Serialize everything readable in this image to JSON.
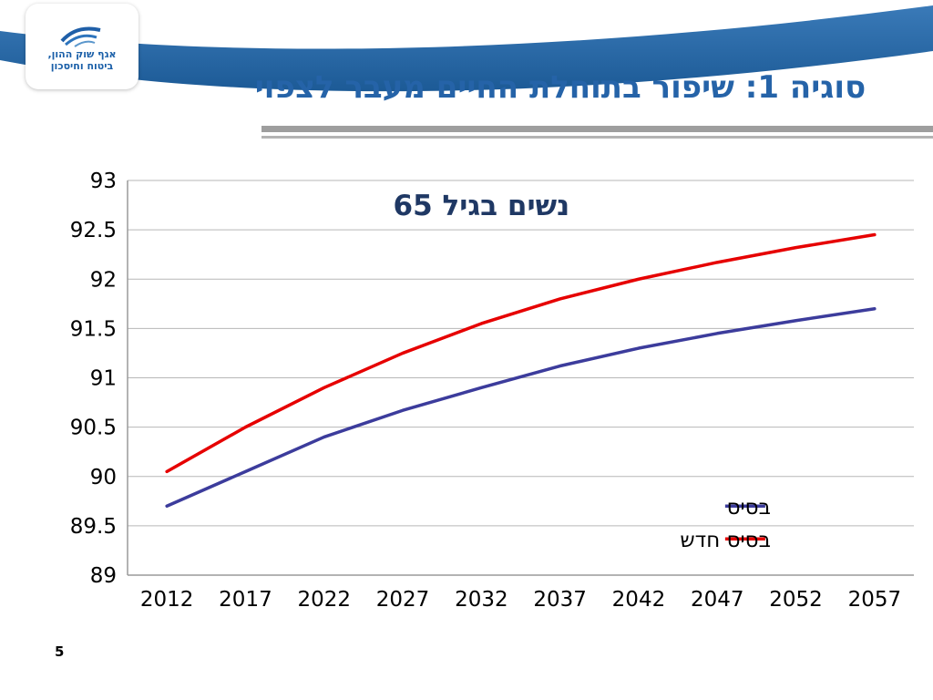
{
  "header": {
    "logo": {
      "line1": "אגף שוק ההון,",
      "line2": "ביטוח וחיסכון"
    },
    "title": "סוגיה 1: שיפור בתוחלת החיים מעבר לצפוי"
  },
  "footer": {
    "page_number": "5"
  },
  "colors": {
    "band_top": "#3a7ab8",
    "band_bottom": "#1c5a96",
    "title_text": "#2563a8",
    "chart_title_text": "#1f3864",
    "gridline": "#b7b7b7",
    "axis": "#9a9a9a"
  },
  "chart_data": {
    "type": "line",
    "title": "נשים בגיל 65",
    "x": [
      "2012",
      "2017",
      "2022",
      "2027",
      "2032",
      "2037",
      "2042",
      "2047",
      "2052",
      "2057"
    ],
    "series": [
      {
        "name": "בסיס",
        "color": "#3c3c9c",
        "values": [
          89.7,
          90.05,
          90.4,
          90.67,
          90.9,
          91.12,
          91.3,
          91.45,
          91.58,
          91.7
        ]
      },
      {
        "name": "בסיס חדש",
        "color": "#e60000",
        "values": [
          90.05,
          90.5,
          90.9,
          91.25,
          91.55,
          91.8,
          92.0,
          92.17,
          92.32,
          92.45
        ]
      }
    ],
    "ylim": [
      89,
      93
    ],
    "ytick_step": 0.5,
    "grid": true,
    "legend_position": "inside-right-bottom"
  }
}
